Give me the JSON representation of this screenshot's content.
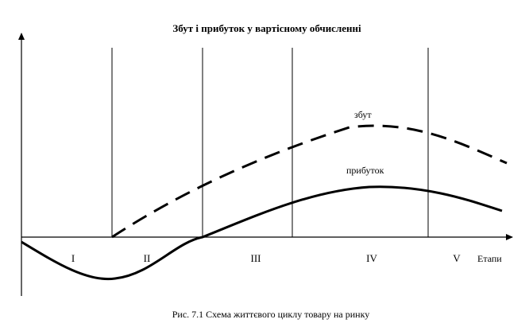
{
  "diagram": {
    "title": "Збут і прибуток у вартісному обчисленні",
    "sales_label": "збут",
    "profit_label": "прибуток",
    "x_axis_label": "Етапи",
    "stages": [
      "I",
      "II",
      "III",
      "IV",
      "V"
    ],
    "caption": "Рис. 7.1 Схема життєвого циклу товару на ринку"
  }
}
